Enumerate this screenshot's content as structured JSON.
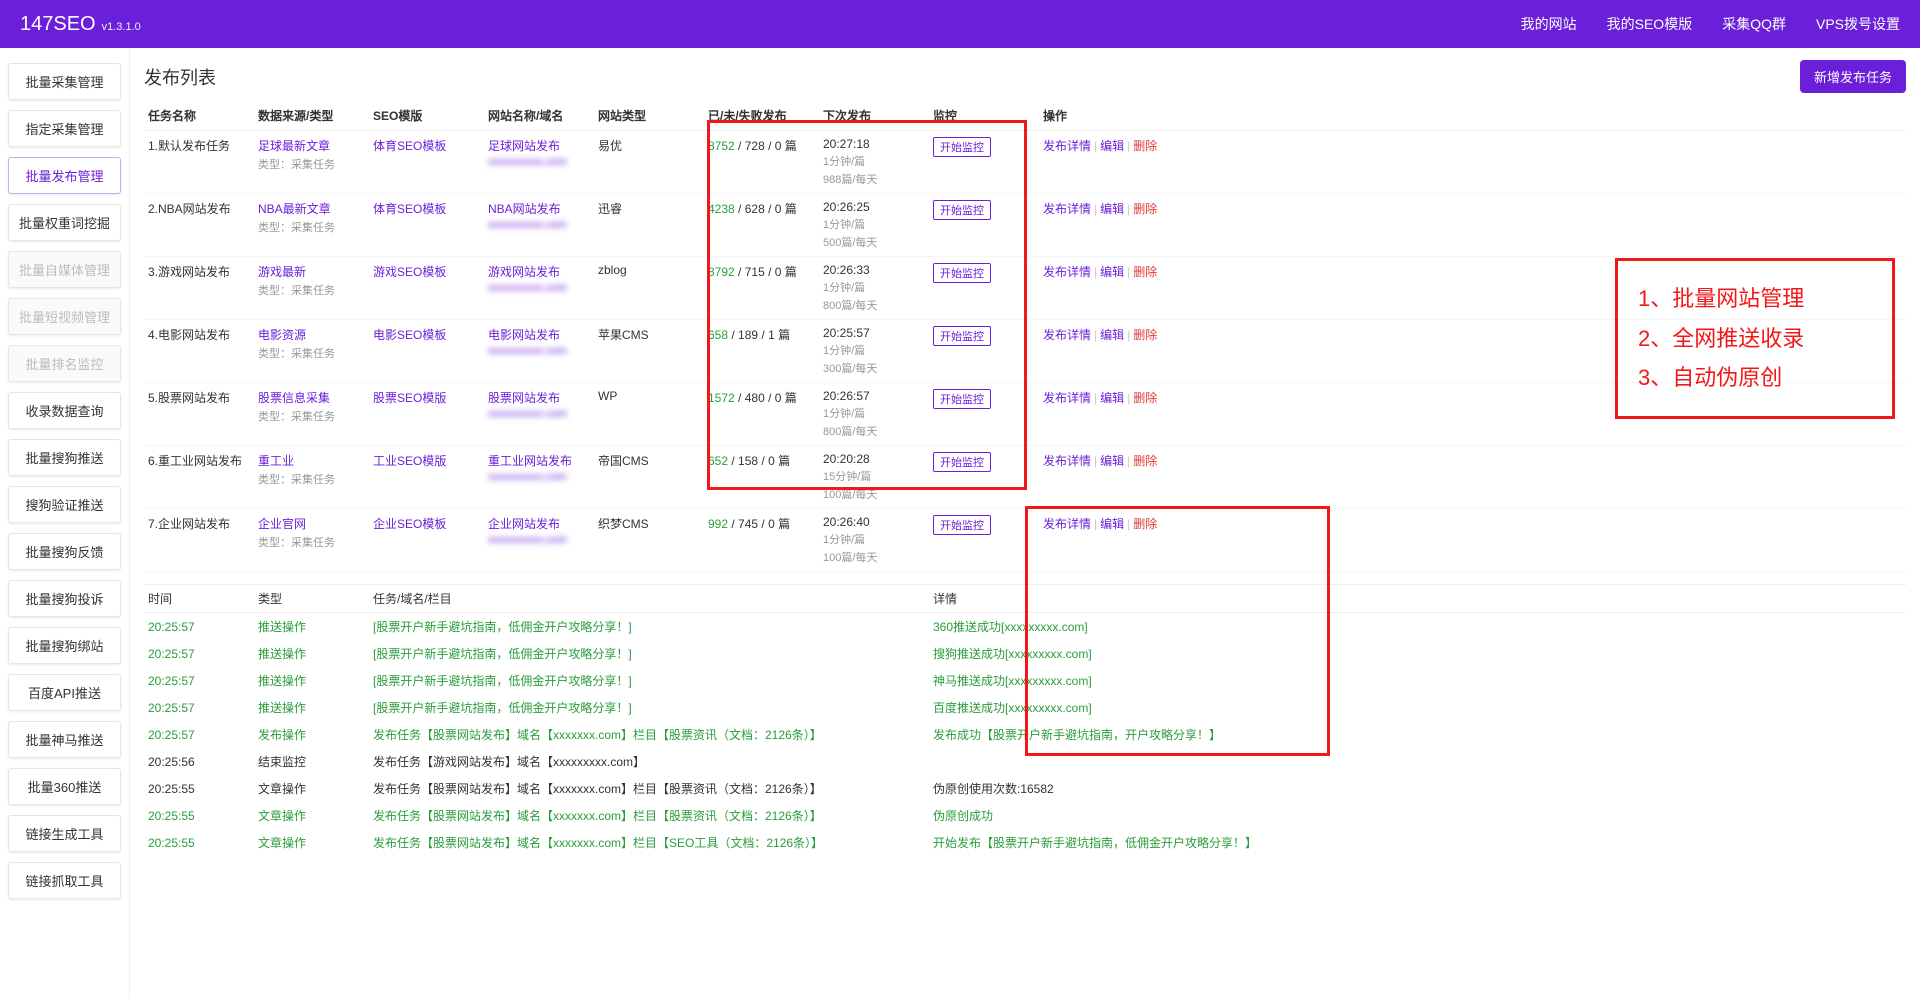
{
  "header": {
    "logo": "147SEO",
    "version": "v1.3.1.0",
    "nav": [
      "我的网站",
      "我的SEO模版",
      "采集QQ群",
      "VPS拨号设置"
    ]
  },
  "sidebar": [
    {
      "label": "批量采集管理",
      "active": false,
      "disabled": false
    },
    {
      "label": "指定采集管理",
      "active": false,
      "disabled": false
    },
    {
      "label": "批量发布管理",
      "active": true,
      "disabled": false
    },
    {
      "label": "批量权重词挖掘",
      "active": false,
      "disabled": false
    },
    {
      "label": "批量自媒体管理",
      "active": false,
      "disabled": true
    },
    {
      "label": "批量短视频管理",
      "active": false,
      "disabled": true
    },
    {
      "label": "批量排名监控",
      "active": false,
      "disabled": true
    },
    {
      "label": "收录数据查询",
      "active": false,
      "disabled": false
    },
    {
      "label": "批量搜狗推送",
      "active": false,
      "disabled": false
    },
    {
      "label": "搜狗验证推送",
      "active": false,
      "disabled": false
    },
    {
      "label": "批量搜狗反馈",
      "active": false,
      "disabled": false
    },
    {
      "label": "批量搜狗投诉",
      "active": false,
      "disabled": false
    },
    {
      "label": "批量搜狗绑站",
      "active": false,
      "disabled": false
    },
    {
      "label": "百度API推送",
      "active": false,
      "disabled": false
    },
    {
      "label": "批量神马推送",
      "active": false,
      "disabled": false
    },
    {
      "label": "批量360推送",
      "active": false,
      "disabled": false
    },
    {
      "label": "链接生成工具",
      "active": false,
      "disabled": false
    },
    {
      "label": "链接抓取工具",
      "active": false,
      "disabled": false
    }
  ],
  "mainTitle": "发布列表",
  "addBtn": "新增发布任务",
  "cols": {
    "task": "任务名称",
    "src": "数据来源/类型",
    "tpl": "SEO模版",
    "site": "网站名称/域名",
    "type": "网站类型",
    "pub": "已/未/失败发布",
    "next": "下次发布",
    "mon": "监控",
    "op": "操作"
  },
  "monLabel": "开始监控",
  "opDetail": "发布详情",
  "opEdit": "编辑",
  "opDel": "删除",
  "srcSub": "类型：采集任务",
  "rows": [
    {
      "task": "1.默认发布任务",
      "src": "足球最新文章",
      "tpl": "体育SEO模板",
      "site": "足球网站发布",
      "dom": "xxxxxxxxxx.com",
      "type": "易优",
      "s": "8752",
      "r": "/ 728 / 0 篇",
      "next": "20:27:18",
      "sub1": "1分钟/篇",
      "sub2": "988篇/每天"
    },
    {
      "task": "2.NBA网站发布",
      "src": "NBA最新文章",
      "tpl": "体育SEO模板",
      "site": "NBA网站发布",
      "dom": "xxxxxxxxxx.com",
      "type": "迅睿",
      "s": "4238",
      "r": "/ 628 / 0 篇",
      "next": "20:26:25",
      "sub1": "1分钟/篇",
      "sub2": "500篇/每天"
    },
    {
      "task": "3.游戏网站发布",
      "src": "游戏最新",
      "tpl": "游戏SEO模板",
      "site": "游戏网站发布",
      "dom": "xxxxxxxxxx.com",
      "type": "zblog",
      "s": "8792",
      "r": "/ 715 / 0 篇",
      "next": "20:26:33",
      "sub1": "1分钟/篇",
      "sub2": "800篇/每天"
    },
    {
      "task": "4.电影网站发布",
      "src": "电影资源",
      "tpl": "电影SEO模板",
      "site": "电影网站发布",
      "dom": "xxxxxxxxxx.com",
      "type": "苹果CMS",
      "s": "658",
      "r": "/ 189 / 1 篇",
      "next": "20:25:57",
      "sub1": "1分钟/篇",
      "sub2": "300篇/每天"
    },
    {
      "task": "5.股票网站发布",
      "src": "股票信息采集",
      "tpl": "股票SEO模版",
      "site": "股票网站发布",
      "dom": "xxxxxxxxxx.com",
      "type": "WP",
      "s": "1572",
      "r": "/ 480 / 0 篇",
      "next": "20:26:57",
      "sub1": "1分钟/篇",
      "sub2": "800篇/每天"
    },
    {
      "task": "6.重工业网站发布",
      "src": "重工业",
      "tpl": "工业SEO模版",
      "site": "重工业网站发布",
      "dom": "xxxxxxxxxx.com",
      "type": "帝国CMS",
      "s": "652",
      "r": "/ 158 / 0 篇",
      "next": "20:20:28",
      "sub1": "15分钟/篇",
      "sub2": "100篇/每天"
    },
    {
      "task": "7.企业网站发布",
      "src": "企业官网",
      "tpl": "企业SEO模板",
      "site": "企业网站发布",
      "dom": "xxxxxxxxxx.com",
      "type": "织梦CMS",
      "s": "992",
      "r": "/ 745 / 0 篇",
      "next": "20:26:40",
      "sub1": "1分钟/篇",
      "sub2": "100篇/每天"
    }
  ],
  "callout": [
    "1、批量网站管理",
    "2、全网推送收录",
    "3、自动伪原创"
  ],
  "logCols": {
    "time": "时间",
    "type": "类型",
    "task": "任务/域名/栏目",
    "detail": "详情"
  },
  "logs": [
    {
      "t": "20:25:57",
      "y": "推送操作",
      "task": "[股票开户新手避坑指南，低佣金开户攻略分享！]",
      "d": "360推送成功[xxxxxxxxx.com]",
      "g": true
    },
    {
      "t": "20:25:57",
      "y": "推送操作",
      "task": "[股票开户新手避坑指南，低佣金开户攻略分享！]",
      "d": "搜狗推送成功[xxxxxxxxx.com]",
      "g": true
    },
    {
      "t": "20:25:57",
      "y": "推送操作",
      "task": "[股票开户新手避坑指南，低佣金开户攻略分享！]",
      "d": "神马推送成功[xxxxxxxxx.com]",
      "g": true
    },
    {
      "t": "20:25:57",
      "y": "推送操作",
      "task": "[股票开户新手避坑指南，低佣金开户攻略分享！]",
      "d": "百度推送成功[xxxxxxxxx.com]",
      "g": true
    },
    {
      "t": "20:25:57",
      "y": "发布操作",
      "task": "发布任务【股票网站发布】域名【xxxxxxx.com】栏目【股票资讯（文档：2126条）】",
      "d": "发布成功【股票开户新手避坑指南，开户攻略分享！】",
      "g": true
    },
    {
      "t": "20:25:56",
      "y": "结束监控",
      "task": "发布任务【游戏网站发布】域名【xxxxxxxxx.com】",
      "d": "",
      "g": false
    },
    {
      "t": "20:25:55",
      "y": "文章操作",
      "task": "发布任务【股票网站发布】域名【xxxxxxx.com】栏目【股票资讯（文档：2126条）】",
      "d": "伪原创使用次数:16582",
      "g": false
    },
    {
      "t": "20:25:55",
      "y": "文章操作",
      "task": "发布任务【股票网站发布】域名【xxxxxxx.com】栏目【股票资讯（文档：2126条）】",
      "d": "伪原创成功",
      "g": true
    },
    {
      "t": "20:25:55",
      "y": "文章操作",
      "task": "发布任务【股票网站发布】域名【xxxxxxx.com】栏目【SEO工具（文档：2126条）】",
      "d": "开始发布【股票开户新手避坑指南，低佣金开户攻略分享！】",
      "g": true
    }
  ]
}
